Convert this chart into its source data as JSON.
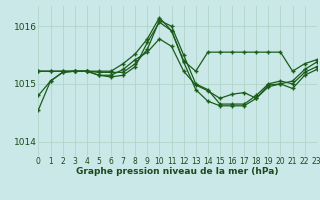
{
  "bg_color": "#cbe8e8",
  "grid_color": "#b0d5c8",
  "line_color": "#1a5c1a",
  "ylabel_ticks": [
    1014,
    1015,
    1016
  ],
  "xlim": [
    0,
    23
  ],
  "ylim": [
    1013.75,
    1016.35
  ],
  "xlabel": "Graphe pression niveau de la mer (hPa)",
  "xticks": [
    0,
    1,
    2,
    3,
    4,
    5,
    6,
    7,
    8,
    9,
    10,
    11,
    12,
    13,
    14,
    15,
    16,
    17,
    18,
    19,
    20,
    21,
    22,
    23
  ],
  "lines": [
    {
      "x": [
        0,
        1,
        2,
        3,
        4,
        5,
        6,
        7,
        8,
        9,
        10,
        11,
        12,
        13,
        14,
        15,
        16,
        17,
        18,
        19,
        20,
        21,
        22,
        23
      ],
      "y": [
        1014.8,
        1015.05,
        1015.2,
        1015.22,
        1015.22,
        1015.2,
        1015.2,
        1015.2,
        1015.35,
        1015.6,
        1016.1,
        1016.0,
        1015.5,
        1015.0,
        1014.9,
        1014.65,
        1014.65,
        1014.65,
        1014.8,
        1015.0,
        1015.05,
        1015.0,
        1015.2,
        1015.3
      ]
    },
    {
      "x": [
        0,
        1,
        2,
        3,
        4,
        5,
        6,
        7,
        8,
        9,
        10,
        11,
        12,
        13,
        14,
        15,
        16,
        17,
        18,
        19,
        20,
        21,
        22,
        23
      ],
      "y": [
        1014.55,
        1015.05,
        1015.2,
        1015.22,
        1015.22,
        1015.15,
        1015.12,
        1015.15,
        1015.3,
        1015.72,
        1016.07,
        1015.92,
        1015.38,
        1014.9,
        1014.7,
        1014.62,
        1014.62,
        1014.62,
        1014.75,
        1014.98,
        1015.0,
        1014.92,
        1015.15,
        1015.25
      ]
    },
    {
      "x": [
        0,
        1,
        2,
        3,
        4,
        5,
        6,
        7,
        8,
        9,
        10,
        11,
        12,
        13,
        14,
        15,
        16,
        17,
        18,
        19,
        20,
        21,
        22,
        23
      ],
      "y": [
        1015.22,
        1015.22,
        1015.22,
        1015.22,
        1015.22,
        1015.22,
        1015.22,
        1015.35,
        1015.52,
        1015.78,
        1016.15,
        1015.92,
        1015.4,
        1015.22,
        1015.55,
        1015.55,
        1015.55,
        1015.55,
        1015.55,
        1015.55,
        1015.55,
        1015.22,
        1015.35,
        1015.42
      ]
    },
    {
      "x": [
        0,
        1,
        2,
        3,
        4,
        5,
        6,
        7,
        8,
        9,
        10,
        11,
        12,
        13,
        14,
        15,
        16,
        17,
        18,
        19,
        20,
        21,
        22,
        23
      ],
      "y": [
        1015.22,
        1015.22,
        1015.22,
        1015.22,
        1015.22,
        1015.15,
        1015.15,
        1015.25,
        1015.42,
        1015.55,
        1015.78,
        1015.65,
        1015.22,
        1014.98,
        1014.88,
        1014.75,
        1014.82,
        1014.85,
        1014.75,
        1014.95,
        1015.0,
        1015.05,
        1015.25,
        1015.38
      ]
    }
  ]
}
